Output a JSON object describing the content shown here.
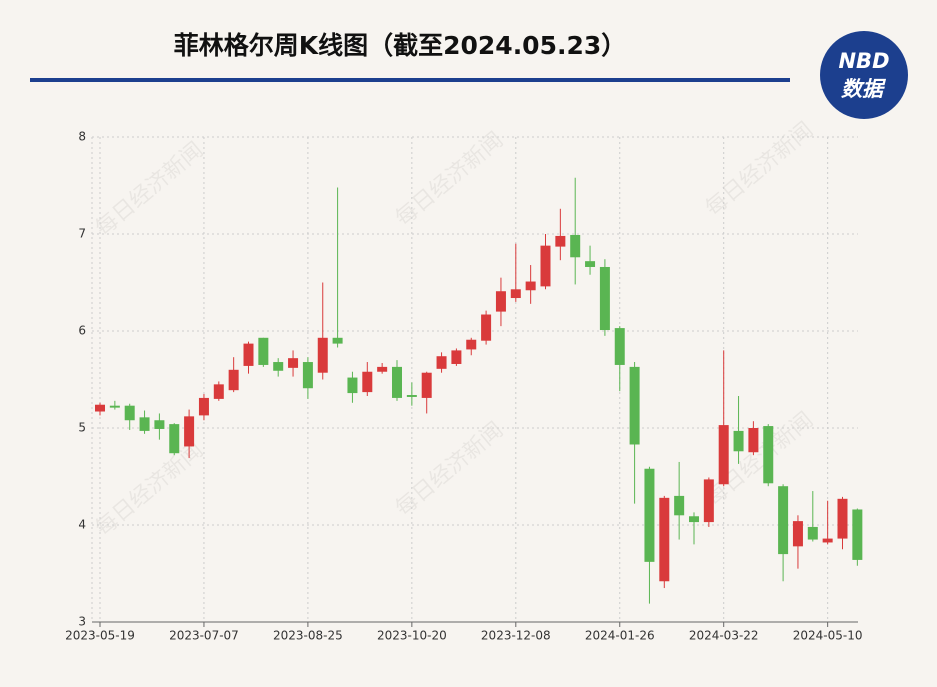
{
  "chart_data": {
    "type": "candlestick",
    "title": "菲林格尔周K线图（截至2024.05.23）",
    "logo": {
      "top": "NBD",
      "bottom": "数据"
    },
    "watermark": "每日经济新闻",
    "categories": [
      "2023-05-19",
      null,
      null,
      null,
      null,
      null,
      null,
      "2023-07-07",
      null,
      null,
      null,
      null,
      null,
      null,
      "2023-08-25",
      null,
      null,
      null,
      null,
      null,
      null,
      "2023-10-20",
      null,
      null,
      null,
      null,
      null,
      null,
      "2023-12-08",
      null,
      null,
      null,
      null,
      null,
      null,
      "2024-01-26",
      null,
      null,
      null,
      null,
      null,
      null,
      "2024-03-22",
      null,
      null,
      null,
      null,
      null,
      null,
      "2024-05-10",
      null,
      null
    ],
    "open": [
      5.17,
      5.23,
      5.23,
      5.11,
      5.08,
      5.04,
      4.81,
      5.13,
      5.3,
      5.39,
      5.64,
      5.93,
      5.68,
      5.62,
      5.68,
      5.57,
      5.93,
      5.52,
      5.37,
      5.58,
      5.63,
      5.34,
      5.31,
      5.61,
      5.66,
      5.81,
      5.9,
      6.2,
      6.34,
      6.42,
      6.46,
      6.87,
      6.99,
      6.72,
      6.66,
      6.03,
      5.63,
      4.58,
      3.42,
      4.3,
      4.09,
      4.03,
      4.42,
      4.97,
      4.75,
      5.02,
      4.4,
      3.78,
      3.98,
      3.82,
      3.86,
      4.16
    ],
    "high": [
      5.26,
      5.28,
      5.25,
      5.18,
      5.15,
      5.05,
      5.19,
      5.35,
      5.48,
      5.73,
      5.89,
      5.93,
      5.72,
      5.8,
      5.73,
      6.5,
      7.48,
      5.58,
      5.68,
      5.67,
      5.7,
      5.47,
      5.58,
      5.78,
      5.82,
      5.93,
      6.21,
      6.55,
      6.9,
      6.68,
      7.0,
      7.26,
      7.58,
      6.88,
      6.74,
      6.05,
      5.68,
      4.6,
      4.3,
      4.65,
      4.13,
      4.49,
      5.8,
      5.33,
      5.07,
      5.04,
      4.42,
      4.1,
      4.35,
      4.25,
      4.29,
      4.17
    ],
    "low": [
      5.13,
      5.19,
      4.98,
      4.94,
      4.88,
      4.72,
      4.69,
      5.08,
      5.28,
      5.37,
      5.56,
      5.63,
      5.53,
      5.53,
      5.3,
      5.5,
      5.83,
      5.26,
      5.33,
      5.56,
      5.28,
      5.23,
      5.15,
      5.57,
      5.64,
      5.75,
      5.86,
      6.05,
      6.3,
      6.28,
      6.43,
      6.73,
      6.48,
      6.58,
      5.95,
      5.38,
      4.22,
      3.19,
      3.35,
      3.85,
      3.8,
      3.98,
      4.4,
      4.63,
      4.72,
      4.4,
      3.42,
      3.55,
      3.83,
      3.8,
      3.75,
      3.58
    ],
    "close": [
      5.24,
      5.21,
      5.08,
      4.97,
      4.99,
      4.74,
      5.12,
      5.31,
      5.45,
      5.6,
      5.87,
      5.65,
      5.59,
      5.72,
      5.41,
      5.93,
      5.87,
      5.36,
      5.58,
      5.63,
      5.31,
      5.32,
      5.57,
      5.74,
      5.8,
      5.91,
      6.17,
      6.41,
      6.43,
      6.51,
      6.88,
      6.98,
      6.76,
      6.66,
      6.01,
      5.65,
      4.83,
      3.62,
      4.28,
      4.1,
      4.03,
      4.47,
      5.03,
      4.76,
      5.0,
      4.43,
      3.7,
      4.04,
      3.85,
      3.86,
      4.27,
      3.64
    ],
    "up_color": "#d93a3b",
    "down_color": "#5ab552",
    "ylim": [
      3,
      8
    ],
    "yticks": [
      3,
      4,
      5,
      6,
      7,
      8
    ],
    "grid": true
  }
}
